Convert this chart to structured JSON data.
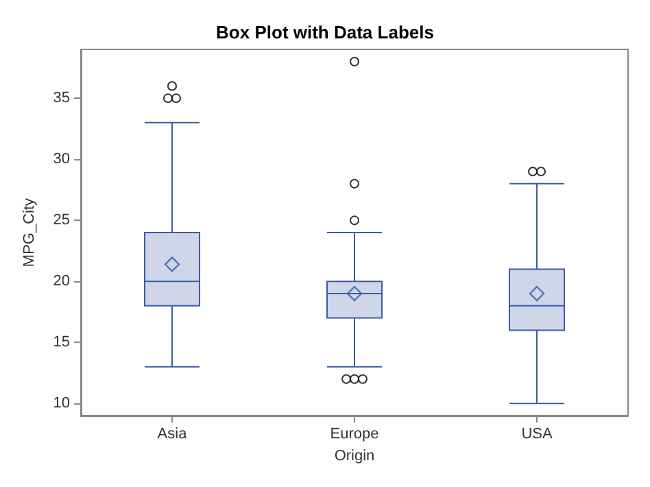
{
  "chart_data": {
    "type": "box",
    "title": "Box Plot with Data Labels",
    "xlabel": "Origin",
    "ylabel": "MPG_City",
    "categories": [
      "Asia",
      "Europe",
      "USA"
    ],
    "color": "#3b5ba5",
    "ylim": [
      9,
      39
    ],
    "yticks": [
      10,
      15,
      20,
      25,
      30,
      35
    ],
    "grid": false,
    "boxes": [
      {
        "low": 13,
        "q1": 18,
        "median": 20,
        "q3": 24,
        "high": 33,
        "mean": 21.4,
        "outliers": [
          36,
          35,
          35
        ]
      },
      {
        "low": 13,
        "q1": 17,
        "median": 19,
        "q3": 20,
        "high": 24,
        "mean": 19,
        "outliers": [
          38,
          28,
          25,
          12,
          12,
          12
        ]
      },
      {
        "low": 10,
        "q1": 16,
        "median": 18,
        "q3": 21,
        "high": 28,
        "mean": 19,
        "outliers": [
          29,
          29
        ]
      }
    ]
  }
}
